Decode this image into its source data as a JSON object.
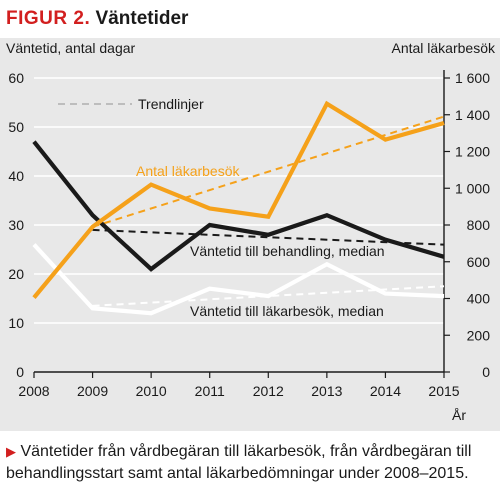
{
  "header": {
    "figure_label": "FIGUR 2.",
    "title": "Väntetider"
  },
  "caption": {
    "text": "Väntetider från vårdbegäran till läkarbesök, från vårdbegäran till behandlingsstart samt antal läkarbedömningar under 2008–2015."
  },
  "colors": {
    "orange": "#f5a11a",
    "black": "#1a1a1a",
    "white": "#ffffff",
    "grey_dash": "#bdbdbd",
    "panel": "#e8e8e8",
    "accent_red": "#d21f1f"
  },
  "chart_data": {
    "type": "line",
    "title": "Väntetider",
    "x": [
      2008,
      2009,
      2010,
      2011,
      2012,
      2013,
      2014,
      2015
    ],
    "x_label": "År",
    "y_left": {
      "label": "Väntetid, antal dagar",
      "range": [
        0,
        60
      ],
      "ticks": [
        0,
        10,
        20,
        30,
        40,
        50,
        60
      ]
    },
    "y_right": {
      "label": "Antal läkarbesök",
      "range": [
        0,
        1600
      ],
      "ticks": [
        0,
        200,
        400,
        600,
        800,
        1000,
        1200,
        1400,
        1600
      ]
    },
    "series": [
      {
        "name": "Antal läkarbesök",
        "axis": "right",
        "color": "#f5a11a",
        "values": [
          405,
          790,
          1020,
          890,
          845,
          1460,
          1265,
          1355
        ]
      },
      {
        "name": "Väntetid till behandling, median",
        "axis": "left",
        "color": "#1a1a1a",
        "values": [
          47,
          32,
          21,
          30,
          28,
          32,
          27,
          23.5
        ]
      },
      {
        "name": "Väntetid till läkarbesök, median",
        "axis": "left",
        "color": "#ffffff",
        "values": [
          26,
          13,
          12,
          17,
          15.5,
          22,
          16,
          15.5
        ]
      }
    ],
    "trendlines": [
      {
        "series": "Antal läkarbesök",
        "axis": "right",
        "color": "#f5a11a",
        "x": [
          2009,
          2015
        ],
        "y": [
          790,
          1390
        ]
      },
      {
        "series": "Väntetid till behandling, median",
        "axis": "left",
        "color": "#1a1a1a",
        "x": [
          2009,
          2015
        ],
        "y": [
          29,
          26
        ]
      },
      {
        "series": "Väntetid till läkarbesök, median",
        "axis": "left",
        "color": "#ffffff",
        "x": [
          2009,
          2015
        ],
        "y": [
          13.5,
          17.5
        ]
      }
    ],
    "legend": {
      "label": "Trendlinjer",
      "placement": "top-left"
    },
    "grid": true
  }
}
